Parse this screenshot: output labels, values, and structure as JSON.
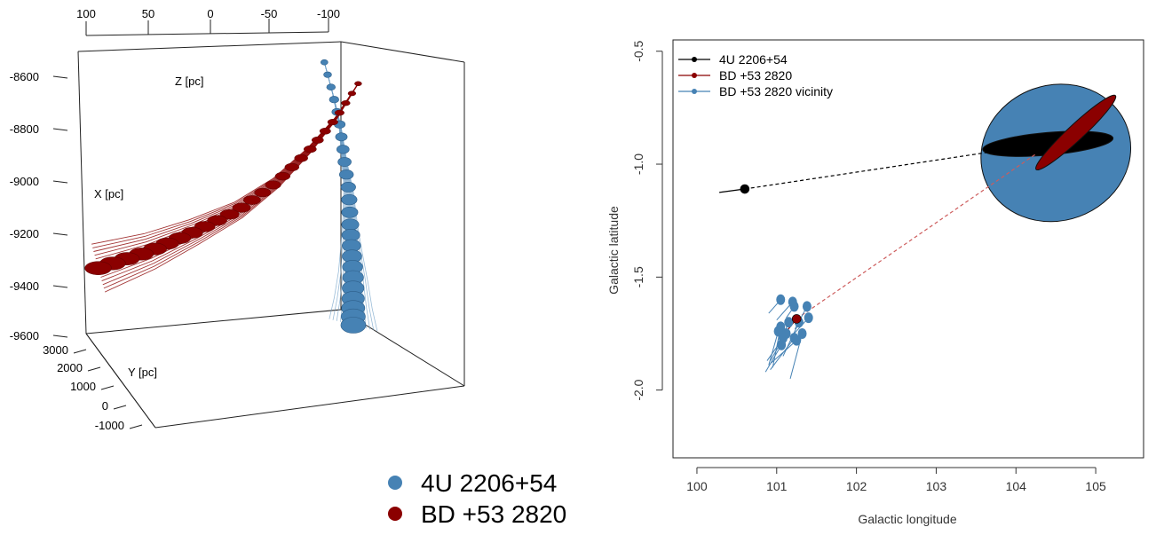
{
  "chart_data": [
    {
      "type": "scatter",
      "dimensions": 3,
      "z_axis": {
        "label": "Z [pc]",
        "ticks": [
          "100",
          "50",
          "0",
          "-50",
          "-100"
        ],
        "range": [
          100,
          -100
        ]
      },
      "x_axis": {
        "label": "X [pc]",
        "ticks": [
          "-8600",
          "-8800",
          "-9000",
          "-9200",
          "-9400",
          "-9600"
        ],
        "range": [
          -8600,
          -9600
        ]
      },
      "y_axis": {
        "label": "Y [pc]",
        "ticks": [
          "3000",
          "2000",
          "1000",
          "0",
          "-1000"
        ],
        "range": [
          3000,
          -1000
        ]
      },
      "legend": {
        "placement": "bottom-center",
        "entries": [
          {
            "label": "4U 2206+54",
            "color": "#4682b4"
          },
          {
            "label": "BD +53 2820",
            "color": "#8b0000"
          }
        ]
      },
      "series": [
        {
          "color": "#4682b4",
          "points": [
            {
              "x": -8560,
              "y": 2000,
              "z": -75
            },
            {
              "x": -8680,
              "y": 1900,
              "z": -82
            },
            {
              "x": -8800,
              "y": 1800,
              "z": -88
            },
            {
              "x": -8920,
              "y": 1650,
              "z": -92
            },
            {
              "x": -9040,
              "y": 1450,
              "z": -97
            },
            {
              "x": -9160,
              "y": 1200,
              "z": -100
            },
            {
              "x": -9260,
              "y": 950,
              "z": -103
            },
            {
              "x": -9360,
              "y": 700,
              "z": -106
            },
            {
              "x": -9460,
              "y": 450,
              "z": -108
            },
            {
              "x": -9540,
              "y": 200,
              "z": -110
            }
          ]
        },
        {
          "color": "#8b0000",
          "points": [
            {
              "x": -8650,
              "y": 2600,
              "z": -95
            },
            {
              "x": -8780,
              "y": 2450,
              "z": -80
            },
            {
              "x": -8900,
              "y": 2250,
              "z": -62
            },
            {
              "x": -9020,
              "y": 2000,
              "z": -40
            },
            {
              "x": -9120,
              "y": 1700,
              "z": -15
            },
            {
              "x": -9200,
              "y": 1400,
              "z": 15
            },
            {
              "x": -9270,
              "y": 1100,
              "z": 45
            },
            {
              "x": -9330,
              "y": 800,
              "z": 80
            }
          ]
        }
      ]
    },
    {
      "type": "scatter",
      "xlabel": "Galactic longitude",
      "ylabel": "Galactic latitude",
      "xlim": [
        99.7,
        105.6
      ],
      "ylim": [
        -2.3,
        -0.45
      ],
      "xticks": [
        100,
        101,
        102,
        103,
        104,
        105
      ],
      "xtick_labels": [
        "100",
        "101",
        "102",
        "103",
        "104",
        "105"
      ],
      "yticks": [
        -2.0,
        -1.5,
        -1.0,
        -0.5
      ],
      "ytick_labels": [
        "-2.0",
        "-1.5",
        "-1.0",
        "-0.5"
      ],
      "grid": false,
      "legend": {
        "placement": "top-left",
        "entries": [
          {
            "label": "4U 2206+54",
            "color": "#000000"
          },
          {
            "label": "BD +53 2820",
            "color": "#8b0000"
          },
          {
            "label": "BD +53 2820 vicinity",
            "color": "#4682b4"
          }
        ]
      },
      "ellipses": [
        {
          "color": "#4682b4",
          "cx": 104.5,
          "cy": -0.95,
          "rx": 0.95,
          "ry": 0.3,
          "angle_deg": 20
        },
        {
          "color": "#000000",
          "cx": 104.4,
          "cy": -0.91,
          "rx": 0.82,
          "ry": 0.05,
          "angle_deg": 5
        },
        {
          "color": "#8b0000",
          "cx": 104.75,
          "cy": -0.86,
          "rx": 0.68,
          "ry": 0.035,
          "angle_deg": 43
        }
      ],
      "tracks": [
        {
          "series": "4U 2206+54",
          "color": "#000000",
          "style": "dashed",
          "x": [
            100.6,
            103.7
          ],
          "y": [
            -1.11,
            -0.945
          ]
        },
        {
          "series": "4U 2206+54",
          "color": "#000000",
          "style": "solid",
          "x": [
            100.28,
            100.6
          ],
          "y": [
            -1.125,
            -1.11
          ]
        },
        {
          "series": "BD +53 2820",
          "color": "#cd5c5c",
          "style": "dashed",
          "x": [
            101.25,
            104.25
          ],
          "y": [
            -1.685,
            -0.955
          ]
        },
        {
          "series": "BD +53 2820",
          "color": "#8b0000",
          "style": "solid",
          "x": [
            101.1,
            101.25
          ],
          "y": [
            -1.75,
            -1.685
          ]
        }
      ],
      "current_positions": [
        {
          "series": "4U 2206+54",
          "color": "#000000",
          "x": 100.6,
          "y": -1.11
        },
        {
          "series": "BD +53 2820",
          "color": "#8b0000",
          "x": 101.25,
          "y": -1.685
        }
      ],
      "vicinity_stars": [
        {
          "x": 101.05,
          "y": -1.6,
          "dx": -0.15,
          "dy": -0.06
        },
        {
          "x": 101.2,
          "y": -1.61,
          "dx": -0.2,
          "dy": -0.08
        },
        {
          "x": 101.22,
          "y": -1.63,
          "dx": -0.1,
          "dy": -0.05
        },
        {
          "x": 101.38,
          "y": -1.63,
          "dx": -0.15,
          "dy": -0.1
        },
        {
          "x": 101.4,
          "y": -1.68,
          "dx": -0.18,
          "dy": -0.07
        },
        {
          "x": 101.15,
          "y": -1.7,
          "dx": -0.12,
          "dy": -0.1
        },
        {
          "x": 101.28,
          "y": -1.7,
          "dx": -0.2,
          "dy": -0.15
        },
        {
          "x": 101.05,
          "y": -1.72,
          "dx": -0.1,
          "dy": -0.18
        },
        {
          "x": 101.12,
          "y": -1.75,
          "dx": -0.2,
          "dy": -0.12
        },
        {
          "x": 101.32,
          "y": -1.75,
          "dx": -0.15,
          "dy": -0.2
        },
        {
          "x": 101.22,
          "y": -1.77,
          "dx": -0.3,
          "dy": -0.14
        },
        {
          "x": 101.08,
          "y": -1.77,
          "dx": -0.2,
          "dy": -0.1
        },
        {
          "x": 101.02,
          "y": -1.74,
          "dx": -0.12,
          "dy": -0.15
        },
        {
          "x": 101.25,
          "y": -1.78,
          "dx": -0.32,
          "dy": -0.1
        },
        {
          "x": 101.06,
          "y": -1.8,
          "dx": -0.2,
          "dy": -0.12
        }
      ]
    }
  ]
}
